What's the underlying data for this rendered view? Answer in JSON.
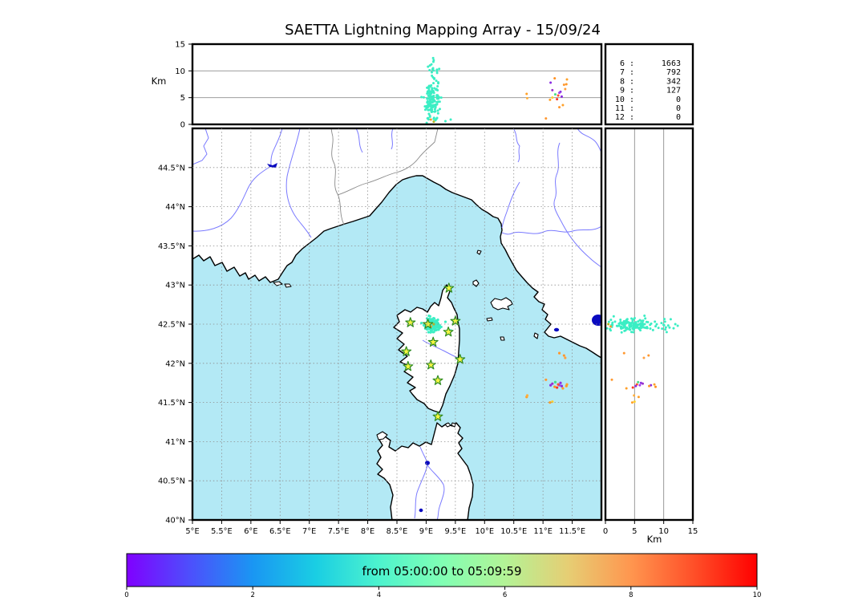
{
  "title": "SAETTA Lightning Mapping Array - 15/09/24",
  "colors": {
    "sea": "#b3e9f5",
    "land": "#ffffff",
    "coast": "#000000",
    "river": "#7a7aff",
    "border": "#8a8a8a",
    "grid": "#8f8f8f",
    "lake": "#0a0ac0",
    "station_fill": "#f5f542",
    "station_edge": "#2e8b22",
    "main_cluster": "#3beec4",
    "legend_highlight": "#ff0000"
  },
  "top_panel": {
    "ylabel": "Km",
    "yticks": [
      0,
      5,
      10,
      15
    ],
    "grid_at": [
      5,
      10
    ]
  },
  "right_panel": {
    "xlabel": "Km",
    "xticks": [
      0,
      5,
      10,
      15
    ],
    "grid_at": [
      5,
      10
    ]
  },
  "map_panel": {
    "lon_ticks": [
      5,
      5.5,
      6,
      6.5,
      7,
      7.5,
      8,
      8.5,
      9,
      9.5,
      10,
      10.5,
      11,
      11.5
    ],
    "lon_tick_labels": [
      "5°E",
      "5.5°E",
      "6°E",
      "6.5°E",
      "7°E",
      "7.5°E",
      "8°E",
      "8.5°E",
      "9°E",
      "9.5°E",
      "10°E",
      "10.5°E",
      "11°E",
      "11.5°E"
    ],
    "lat_ticks": [
      40,
      40.5,
      41,
      41.5,
      42,
      42.5,
      43,
      43.5,
      44,
      44.5
    ],
    "lat_tick_labels": [
      "40°N",
      "40.5°N",
      "41°N",
      "41.5°N",
      "42°N",
      "42.5°N",
      "43°N",
      "43.5°N",
      "44°N",
      "44.5°N"
    ]
  },
  "legend": {
    "entries": [
      {
        "level": 6,
        "count": 1663,
        "highlight": false
      },
      {
        "level": 7,
        "count": 792,
        "highlight": true
      },
      {
        "level": 8,
        "count": 342,
        "highlight": false
      },
      {
        "level": 9,
        "count": 127,
        "highlight": false
      },
      {
        "level": 10,
        "count": 0,
        "highlight": false
      },
      {
        "level": 11,
        "count": 0,
        "highlight": false
      },
      {
        "level": 12,
        "count": 0,
        "highlight": false
      }
    ]
  },
  "colorbar": {
    "label": "from 05:00:00 to 05:09:59",
    "ticks": [
      0,
      2,
      4,
      6,
      8,
      10
    ],
    "min": 0,
    "max": 10,
    "gradient_stops": [
      [
        0.0,
        "#8000ff"
      ],
      [
        0.1,
        "#4d4ffc"
      ],
      [
        0.2,
        "#1a96f3"
      ],
      [
        0.3,
        "#1acee3"
      ],
      [
        0.4,
        "#4df3ce"
      ],
      [
        0.5,
        "#80ffb4"
      ],
      [
        0.6,
        "#b3f396"
      ],
      [
        0.7,
        "#e6ce74"
      ],
      [
        0.8,
        "#ff964f"
      ],
      [
        0.9,
        "#ff4f28"
      ],
      [
        1.0,
        "#ff0000"
      ]
    ]
  },
  "chart_data": {
    "type": "scatter",
    "title": "SAETTA Lightning Mapping Array - 15/09/24",
    "time_window": {
      "from": "05:00:00",
      "to": "05:09:59"
    },
    "panels": {
      "top": {
        "x": "longitude_deg",
        "y": "altitude_km",
        "xlim": [
          5,
          12
        ],
        "ylim": [
          0,
          15
        ],
        "grid_y": [
          5,
          10
        ]
      },
      "map": {
        "x": "longitude_deg",
        "y": "latitude_deg",
        "xlim": [
          5,
          12
        ],
        "ylim": [
          40,
          45
        ],
        "grid_step_deg": 0.5
      },
      "right": {
        "x": "altitude_km",
        "y": "latitude_deg",
        "xlim": [
          0,
          15
        ],
        "ylim": [
          40,
          45
        ],
        "grid_x": [
          5,
          10
        ]
      }
    },
    "station_solution_counts": [
      {
        "stations": 6,
        "sources": 1663
      },
      {
        "stations": 7,
        "sources": 792
      },
      {
        "stations": 8,
        "sources": 342
      },
      {
        "stations": 9,
        "sources": 127
      },
      {
        "stations": 10,
        "sources": 0
      },
      {
        "stations": 11,
        "sources": 0
      },
      {
        "stations": 12,
        "sources": 0
      }
    ],
    "lma_stations_lonlat": [
      [
        9.39,
        42.96
      ],
      [
        8.73,
        42.52
      ],
      [
        9.03,
        42.5
      ],
      [
        9.5,
        42.54
      ],
      [
        9.38,
        42.4
      ],
      [
        9.12,
        42.27
      ],
      [
        8.66,
        42.15
      ],
      [
        9.58,
        42.05
      ],
      [
        8.69,
        41.96
      ],
      [
        9.08,
        41.98
      ],
      [
        9.2,
        41.78
      ],
      [
        9.2,
        41.32
      ]
    ],
    "main_cluster": {
      "color": "#3beec4",
      "n": 170,
      "seed": 42,
      "lon_mu": 9.1,
      "lon_sd": 0.055,
      "lat_mu": 42.49,
      "lat_sd": 0.042,
      "alt_layers": [
        {
          "frac": 0.6,
          "mu": 4.0,
          "sd": 1.1,
          "min": 1.0,
          "max": 6.6
        },
        {
          "frac": 0.24,
          "mu": 6.6,
          "sd": 1.1,
          "min": 4.8,
          "max": 9.6
        },
        {
          "frac": 0.1,
          "mu": 10.6,
          "sd": 1.3,
          "min": 8.8,
          "max": 13.2
        },
        {
          "frac": 0.06,
          "mu": 1.0,
          "sd": 0.5,
          "min": 0.25,
          "max": 2.0
        }
      ]
    },
    "extra_points_lon_lat_alt_color": [
      [
        11.13,
        41.72,
        7.8,
        "#8a2be2"
      ],
      [
        11.16,
        41.74,
        6.4,
        "#9932cc"
      ],
      [
        11.2,
        41.7,
        8.6,
        "#ff9020"
      ],
      [
        11.41,
        41.73,
        8.4,
        "#ffa028"
      ],
      [
        11.4,
        41.71,
        7.5,
        "#ff9828"
      ],
      [
        11.24,
        41.69,
        4.7,
        "#ff3322"
      ],
      [
        11.3,
        41.75,
        6.1,
        "#8a30e0"
      ],
      [
        11.34,
        41.68,
        3.6,
        "#ffa028"
      ],
      [
        11.21,
        41.76,
        5.6,
        "#44e088"
      ],
      [
        11.28,
        41.72,
        5.9,
        "#a040f0"
      ],
      [
        11.26,
        41.73,
        5.4,
        "#ff5030"
      ],
      [
        11.32,
        41.71,
        5.2,
        "#8a2be2"
      ],
      [
        10.72,
        41.57,
        5.7,
        "#ffa028"
      ],
      [
        10.73,
        41.59,
        4.9,
        "#ffb040"
      ],
      [
        11.36,
        42.1,
        7.4,
        "#ff9830"
      ],
      [
        11.38,
        42.07,
        6.6,
        "#ffa040"
      ],
      [
        11.28,
        42.13,
        3.2,
        "#ff9830"
      ],
      [
        11.05,
        41.79,
        1.1,
        "#ff9830"
      ],
      [
        11.12,
        41.5,
        4.6,
        "#ffa028"
      ],
      [
        11.16,
        41.51,
        5.0,
        "#ffd030"
      ],
      [
        9.33,
        42.53,
        0.6,
        "#3beec4"
      ],
      [
        9.42,
        42.42,
        0.9,
        "#3beec4"
      ],
      [
        9.08,
        42.47,
        0.9,
        "#ff9830"
      ],
      [
        9.13,
        42.5,
        0.5,
        "#b8b820"
      ]
    ]
  }
}
